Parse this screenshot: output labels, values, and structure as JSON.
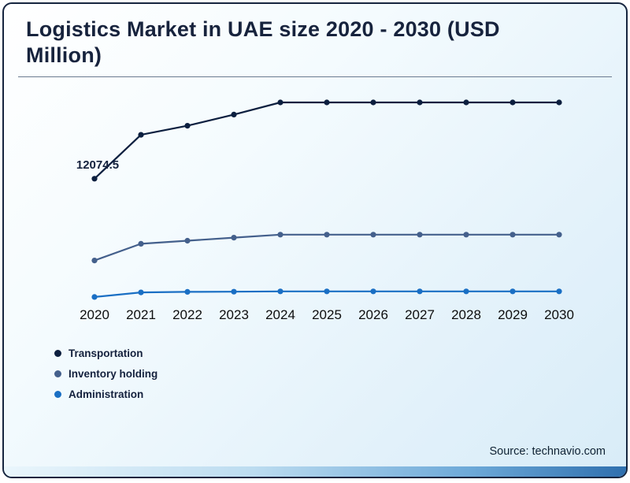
{
  "header": {
    "title": "Logistics Market in UAE size 2020 - 2030 (USD Million)"
  },
  "source": {
    "label": "Source: technavio.com"
  },
  "chart_data": {
    "type": "line",
    "title": "Logistics Market in UAE size 2020 - 2030 (USD Million)",
    "xlabel": "",
    "ylabel": "",
    "grid": false,
    "legend_position": "bottom-left",
    "categories": [
      "2020",
      "2021",
      "2022",
      "2023",
      "2024",
      "2025",
      "2026",
      "2027",
      "2028",
      "2029",
      "2030"
    ],
    "ylim": [
      0,
      21000
    ],
    "series": [
      {
        "name": "Transportation",
        "color": "#0c1f3f",
        "values": [
          12074.5,
          16400,
          17300,
          18400,
          19600,
          19600,
          19600,
          19600,
          19600,
          19600,
          19600
        ]
      },
      {
        "name": "Inventory holding",
        "color": "#44608c",
        "values": [
          4000,
          5650,
          5950,
          6250,
          6550,
          6550,
          6550,
          6550,
          6550,
          6550,
          6550
        ]
      },
      {
        "name": "Administration",
        "color": "#1a6fc4",
        "values": [
          400,
          850,
          900,
          920,
          950,
          950,
          950,
          950,
          950,
          950,
          950
        ]
      }
    ],
    "annotation": {
      "text": "12074.5",
      "series": "Transportation",
      "x": "2020"
    }
  }
}
